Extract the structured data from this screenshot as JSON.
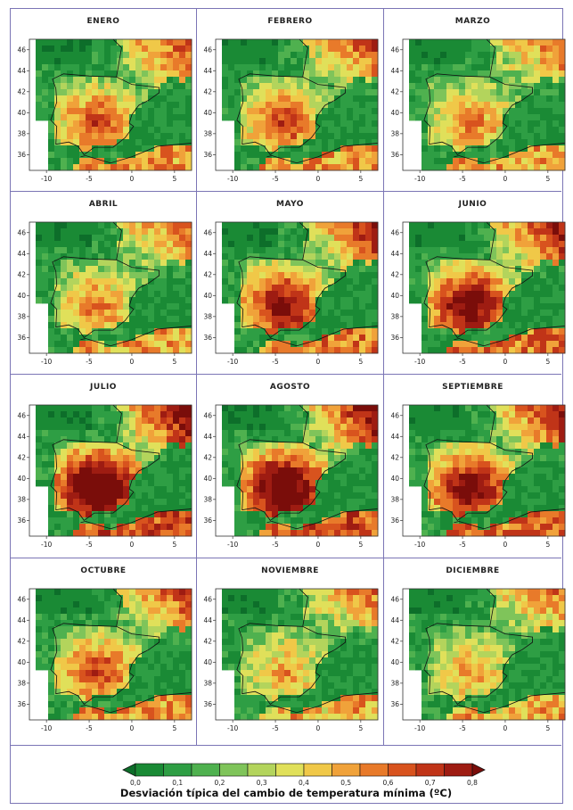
{
  "months": [
    "ENERO",
    "FEBRERO",
    "MARZO",
    "ABRIL",
    "MAYO",
    "JUNIO",
    "JULIO",
    "AGOSTO",
    "SEPTIEMBRE",
    "OCTUBRE",
    "NOVIEMBRE",
    "DICIEMBRE"
  ],
  "map_axes": {
    "lon_ticks": [
      "-10",
      "-5",
      "0",
      "5"
    ],
    "lat_ticks": [
      "46",
      "44",
      "42",
      "40",
      "38",
      "36"
    ],
    "lon_range": [
      -12,
      7
    ],
    "lat_range": [
      34.5,
      47
    ]
  },
  "intensity_by_month": {
    "ENERO": 0.55,
    "FEBRERO": 0.55,
    "MARZO": 0.45,
    "ABRIL": 0.45,
    "MAYO": 0.7,
    "JUNIO": 0.75,
    "JULIO": 0.9,
    "AGOSTO": 0.85,
    "SEPTIEMBRE": 0.75,
    "OCTUBRE": 0.55,
    "NOVIEMBRE": 0.4,
    "DICIEMBRE": 0.4
  },
  "legend": {
    "title": "Desviación típica del cambio de temperatura mínima (ºC)",
    "tick_labels": [
      "0,0",
      "0,1",
      "0,2",
      "0,3",
      "0,4",
      "0,5",
      "0,6",
      "0,7",
      "0,8"
    ],
    "range": [
      0.0,
      0.8
    ],
    "colors": [
      "#0d6e2a",
      "#1a8a35",
      "#2e9e44",
      "#4fb14f",
      "#7fc45a",
      "#b3d45c",
      "#e0e05a",
      "#f0c848",
      "#f0a23a",
      "#e87a2a",
      "#d8531e",
      "#c03418",
      "#9e1c12",
      "#7a0d0a"
    ]
  }
}
